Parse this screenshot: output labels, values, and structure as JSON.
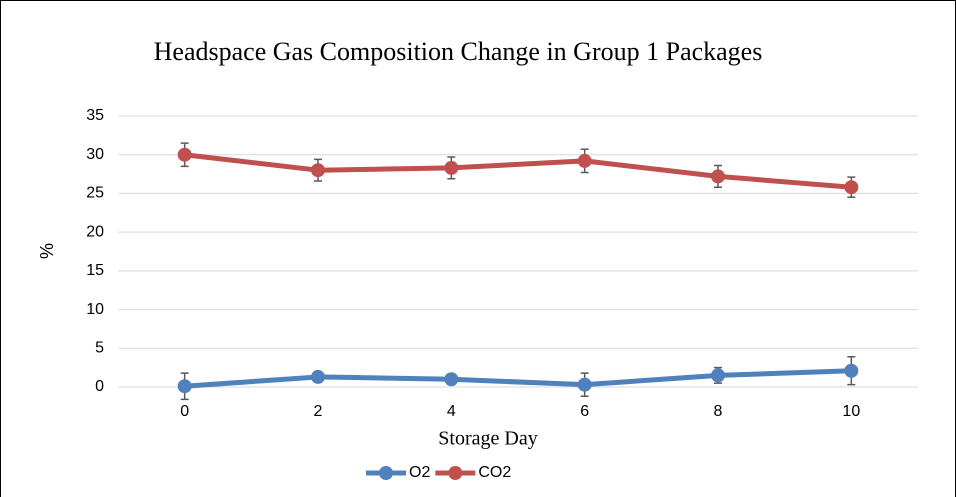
{
  "chart_data": {
    "type": "line",
    "title": "Headspace Gas Composition Change in Group 1 Packages",
    "x_label": "Storage Day",
    "y_label": "%",
    "x": [
      0,
      2,
      4,
      6,
      8,
      10
    ],
    "series": [
      {
        "name": "O2",
        "color": "#4f81bd",
        "values": [
          0.1,
          1.3,
          1.0,
          0.3,
          1.5,
          2.1
        ],
        "errors": [
          1.7,
          0.6,
          0.5,
          1.5,
          1.0,
          1.8
        ]
      },
      {
        "name": "CO2",
        "color": "#c0504d",
        "values": [
          30.0,
          28.0,
          28.3,
          29.2,
          27.2,
          25.8
        ],
        "errors": [
          1.5,
          1.4,
          1.4,
          1.5,
          1.4,
          1.3
        ]
      }
    ],
    "xlim": [
      -1,
      11
    ],
    "xticks": [
      0,
      2,
      4,
      6,
      8,
      10
    ],
    "ylim": [
      0,
      35
    ],
    "yticks": [
      0,
      5,
      10,
      15,
      20,
      25,
      30,
      35
    ],
    "grid": true,
    "legend": "bottom"
  }
}
